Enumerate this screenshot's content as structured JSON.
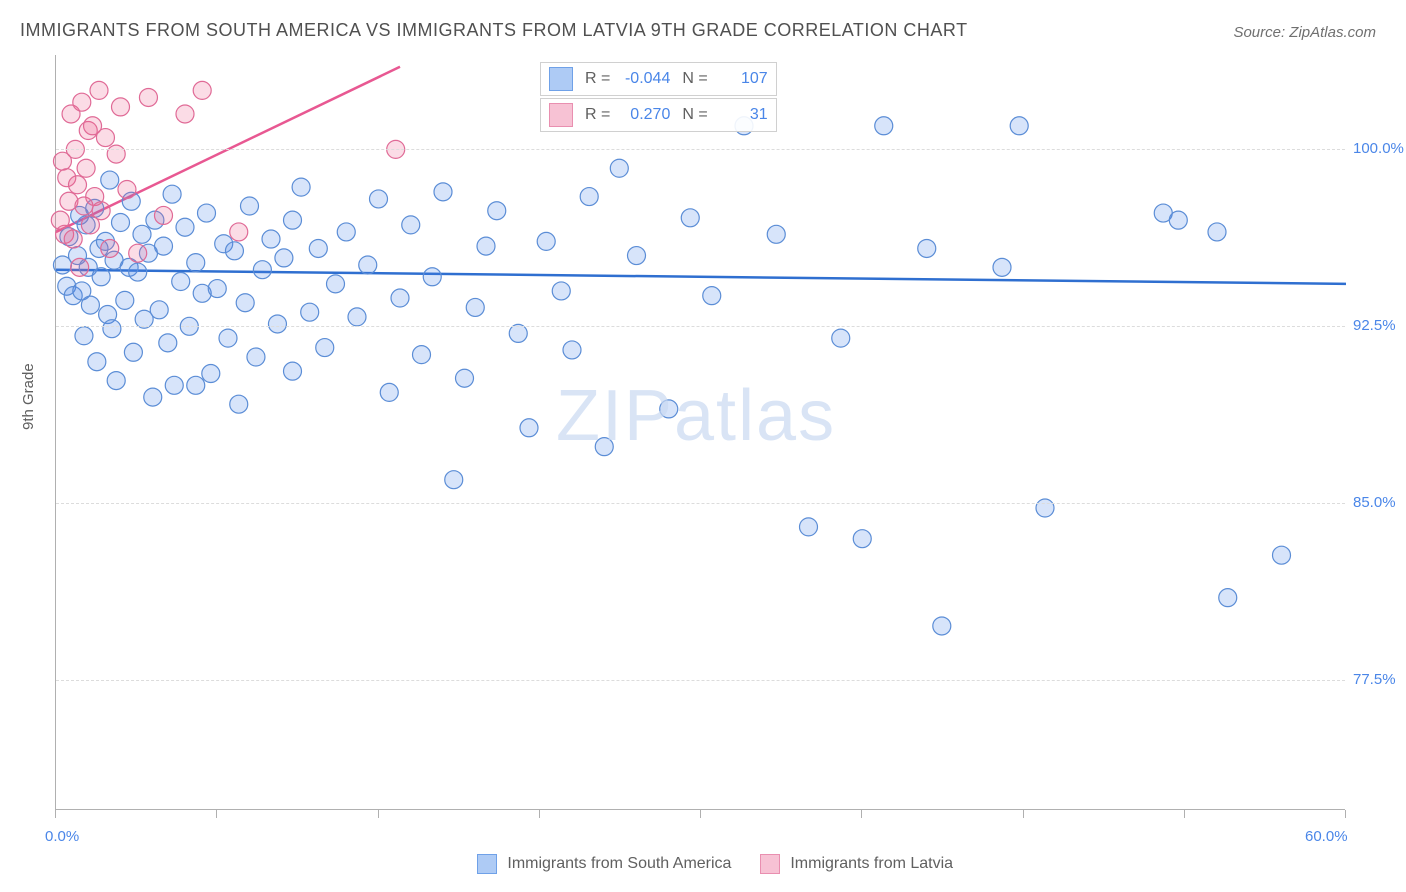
{
  "title": "IMMIGRANTS FROM SOUTH AMERICA VS IMMIGRANTS FROM LATVIA 9TH GRADE CORRELATION CHART",
  "source": "Source: ZipAtlas.com",
  "watermark_a": "ZIP",
  "watermark_b": "atlas",
  "chart": {
    "type": "scatter",
    "ylabel": "9th Grade",
    "background_color": "#ffffff",
    "grid_color": "#dcdcdc",
    "axis_color": "#b0b0b0",
    "tick_label_color": "#4a86e8",
    "xlim": [
      0,
      60
    ],
    "ylim": [
      72,
      104
    ],
    "xtick_positions": [
      0,
      7.5,
      15,
      22.5,
      30,
      37.5,
      45,
      52.5,
      60
    ],
    "xaxis_min_label": "0.0%",
    "xaxis_max_label": "60.0%",
    "ytick_positions": [
      77.5,
      85.0,
      92.5,
      100.0
    ],
    "ytick_labels": [
      "77.5%",
      "85.0%",
      "92.5%",
      "100.0%"
    ],
    "marker_radius": 9,
    "marker_stroke_width": 1.2,
    "trend_line_width": 2.5,
    "series": [
      {
        "name": "Immigrants from South America",
        "color_fill": "rgba(74,134,232,0.22)",
        "color_stroke": "#5b8dd6",
        "swatch_fill": "#aecbf5",
        "swatch_border": "#6fa1e8",
        "R_label": "R =",
        "R_value": "-0.044",
        "N_label": "N =",
        "N_value": "107",
        "trend": {
          "x1": 0,
          "y1": 94.9,
          "x2": 60,
          "y2": 94.3,
          "color": "#2f6fd0"
        },
        "points": [
          [
            0.3,
            95.1
          ],
          [
            0.5,
            94.2
          ],
          [
            0.6,
            96.3
          ],
          [
            0.8,
            93.8
          ],
          [
            1.0,
            95.5
          ],
          [
            1.1,
            97.2
          ],
          [
            1.2,
            94.0
          ],
          [
            1.3,
            92.1
          ],
          [
            1.4,
            96.8
          ],
          [
            1.5,
            95.0
          ],
          [
            1.6,
            93.4
          ],
          [
            1.8,
            97.5
          ],
          [
            1.9,
            91.0
          ],
          [
            2.0,
            95.8
          ],
          [
            2.1,
            94.6
          ],
          [
            2.3,
            96.1
          ],
          [
            2.4,
            93.0
          ],
          [
            2.5,
            98.7
          ],
          [
            2.6,
            92.4
          ],
          [
            2.7,
            95.3
          ],
          [
            2.8,
            90.2
          ],
          [
            3.0,
            96.9
          ],
          [
            3.2,
            93.6
          ],
          [
            3.4,
            95.0
          ],
          [
            3.5,
            97.8
          ],
          [
            3.6,
            91.4
          ],
          [
            3.8,
            94.8
          ],
          [
            4.0,
            96.4
          ],
          [
            4.1,
            92.8
          ],
          [
            4.3,
            95.6
          ],
          [
            4.5,
            89.5
          ],
          [
            4.6,
            97.0
          ],
          [
            4.8,
            93.2
          ],
          [
            5.0,
            95.9
          ],
          [
            5.2,
            91.8
          ],
          [
            5.4,
            98.1
          ],
          [
            5.5,
            90.0
          ],
          [
            5.8,
            94.4
          ],
          [
            6.0,
            96.7
          ],
          [
            6.2,
            92.5
          ],
          [
            6.5,
            95.2
          ],
          [
            6.8,
            93.9
          ],
          [
            7.0,
            97.3
          ],
          [
            7.2,
            90.5
          ],
          [
            7.5,
            94.1
          ],
          [
            7.8,
            96.0
          ],
          [
            8.0,
            92.0
          ],
          [
            8.3,
            95.7
          ],
          [
            8.5,
            89.2
          ],
          [
            8.8,
            93.5
          ],
          [
            9.0,
            97.6
          ],
          [
            9.3,
            91.2
          ],
          [
            9.6,
            94.9
          ],
          [
            10.0,
            96.2
          ],
          [
            10.3,
            92.6
          ],
          [
            10.6,
            95.4
          ],
          [
            11.0,
            90.6
          ],
          [
            11.4,
            98.4
          ],
          [
            11.8,
            93.1
          ],
          [
            12.2,
            95.8
          ],
          [
            12.5,
            91.6
          ],
          [
            13.0,
            94.3
          ],
          [
            13.5,
            96.5
          ],
          [
            14.0,
            92.9
          ],
          [
            14.5,
            95.1
          ],
          [
            15.0,
            97.9
          ],
          [
            15.5,
            89.7
          ],
          [
            16.0,
            93.7
          ],
          [
            16.5,
            96.8
          ],
          [
            17.0,
            91.3
          ],
          [
            17.5,
            94.6
          ],
          [
            18.0,
            98.2
          ],
          [
            18.5,
            86.0
          ],
          [
            19.0,
            90.3
          ],
          [
            19.5,
            93.3
          ],
          [
            20.0,
            95.9
          ],
          [
            20.5,
            97.4
          ],
          [
            21.5,
            92.2
          ],
          [
            22.0,
            88.2
          ],
          [
            22.8,
            96.1
          ],
          [
            23.5,
            94.0
          ],
          [
            24.0,
            91.5
          ],
          [
            24.8,
            98.0
          ],
          [
            25.5,
            87.4
          ],
          [
            26.2,
            99.2
          ],
          [
            27.0,
            95.5
          ],
          [
            28.5,
            89.0
          ],
          [
            29.5,
            97.1
          ],
          [
            30.5,
            93.8
          ],
          [
            32.0,
            101.0
          ],
          [
            33.5,
            96.4
          ],
          [
            35.0,
            84.0
          ],
          [
            36.5,
            92.0
          ],
          [
            37.5,
            83.5
          ],
          [
            38.5,
            101.0
          ],
          [
            40.5,
            95.8
          ],
          [
            41.2,
            79.8
          ],
          [
            44.0,
            95.0
          ],
          [
            44.8,
            101.0
          ],
          [
            46.0,
            84.8
          ],
          [
            51.5,
            97.3
          ],
          [
            52.2,
            97.0
          ],
          [
            54.0,
            96.5
          ],
          [
            57.0,
            82.8
          ],
          [
            54.5,
            81.0
          ],
          [
            6.5,
            90.0
          ],
          [
            11.0,
            97.0
          ]
        ]
      },
      {
        "name": "Immigrants from Latvia",
        "color_fill": "rgba(236,94,141,0.22)",
        "color_stroke": "#e06a96",
        "swatch_fill": "#f7c2d4",
        "swatch_border": "#e98fb0",
        "R_label": "R =",
        "R_value": "0.270",
        "N_label": "N =",
        "N_value": "31",
        "trend": {
          "x1": 0,
          "y1": 96.5,
          "x2": 16,
          "y2": 103.5,
          "color": "#e85892"
        },
        "points": [
          [
            0.2,
            97.0
          ],
          [
            0.3,
            99.5
          ],
          [
            0.4,
            96.4
          ],
          [
            0.5,
            98.8
          ],
          [
            0.6,
            97.8
          ],
          [
            0.7,
            101.5
          ],
          [
            0.8,
            96.2
          ],
          [
            0.9,
            100.0
          ],
          [
            1.0,
            98.5
          ],
          [
            1.1,
            95.0
          ],
          [
            1.2,
            102.0
          ],
          [
            1.3,
            97.6
          ],
          [
            1.4,
            99.2
          ],
          [
            1.5,
            100.8
          ],
          [
            1.6,
            96.8
          ],
          [
            1.7,
            101.0
          ],
          [
            1.8,
            98.0
          ],
          [
            2.0,
            102.5
          ],
          [
            2.1,
            97.4
          ],
          [
            2.3,
            100.5
          ],
          [
            2.5,
            95.8
          ],
          [
            2.8,
            99.8
          ],
          [
            3.0,
            101.8
          ],
          [
            3.3,
            98.3
          ],
          [
            3.8,
            95.6
          ],
          [
            4.3,
            102.2
          ],
          [
            5.0,
            97.2
          ],
          [
            6.0,
            101.5
          ],
          [
            6.8,
            102.5
          ],
          [
            8.5,
            96.5
          ],
          [
            15.8,
            100.0
          ]
        ]
      }
    ]
  },
  "legend_bottom": [
    {
      "text": "Immigrants from South America",
      "swatch_fill": "#aecbf5",
      "swatch_border": "#6fa1e8"
    },
    {
      "text": "Immigrants from Latvia",
      "swatch_fill": "#f7c2d4",
      "swatch_border": "#e98fb0"
    }
  ]
}
